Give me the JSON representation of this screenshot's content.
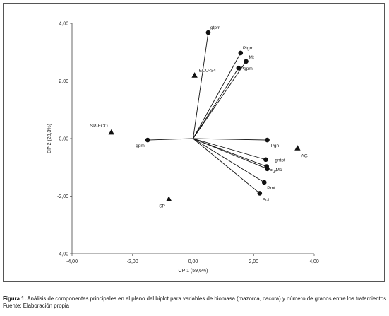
{
  "chart_data": {
    "type": "scatter",
    "xlabel": "CP 1 (59,6%)",
    "ylabel": "CP 2 (28,3%)",
    "xlim": [
      -4,
      4
    ],
    "ylim": [
      -4,
      4
    ],
    "x_ticks": [
      "-4,00",
      "-2,00",
      "0,00",
      "2,00",
      "4,00"
    ],
    "y_ticks": [
      "-4,00",
      "-2,00",
      "0,00",
      "2,00",
      "4,00"
    ],
    "grid": false,
    "series": [
      {
        "marker": "circle",
        "points": [
          {
            "label": "gtpm",
            "x": 0.5,
            "y": 3.68
          },
          {
            "label": "Ptgm",
            "x": 1.57,
            "y": 2.97
          },
          {
            "label": "Mt",
            "x": 1.75,
            "y": 2.68
          },
          {
            "label": "Pgpm",
            "x": 1.5,
            "y": 2.45
          },
          {
            "label": "gpm",
            "x": -1.5,
            "y": -0.05
          },
          {
            "label": "Pgh",
            "x": 2.45,
            "y": -0.05
          },
          {
            "label": "gntot",
            "x": 2.4,
            "y": -0.73
          },
          {
            "label": "Pgs",
            "x": 2.43,
            "y": -0.97
          },
          {
            "label": "Mc",
            "x": 2.45,
            "y": -1.05
          },
          {
            "label": "Pmt",
            "x": 2.35,
            "y": -1.52
          },
          {
            "label": "Pct",
            "x": 2.2,
            "y": -1.9
          }
        ]
      },
      {
        "marker": "triangle",
        "points": [
          {
            "label": "ECO-S4",
            "x": 0.05,
            "y": 2.2
          },
          {
            "label": "SP-ECO",
            "x": -2.7,
            "y": 0.22
          },
          {
            "label": "AG",
            "x": 3.45,
            "y": -0.33
          },
          {
            "label": "SP",
            "x": -0.8,
            "y": -2.1
          }
        ]
      }
    ]
  },
  "caption": {
    "figure_label": "Figura 1.",
    "text": "Análisis de componentes principales en el plano del biplot para variables de biomasa (mazorca, cacota) y número de granos entre los tratamientos.",
    "source": "Fuente: Elaboración propia"
  }
}
